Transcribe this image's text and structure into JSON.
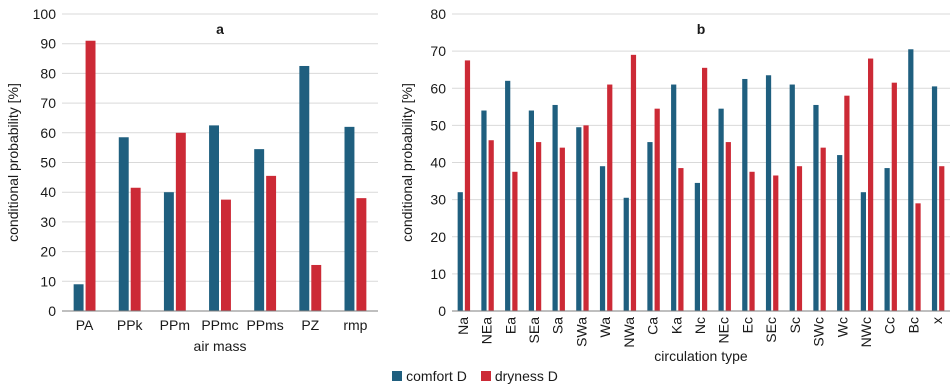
{
  "colors": {
    "comfort": "#1f5f7f",
    "dryness": "#cc2a36",
    "grid": "#d9d9d9",
    "axis": "#7f7f7f"
  },
  "legend": {
    "comfort_label": "comfort D",
    "dryness_label": "dryness D"
  },
  "chart_data": [
    {
      "type": "bar",
      "title": "a",
      "xlabel": "air mass",
      "ylabel": "conditional probability [%]",
      "ylim": [
        0,
        100
      ],
      "yticks": [
        0,
        10,
        20,
        30,
        40,
        50,
        60,
        70,
        80,
        90,
        100
      ],
      "grid": true,
      "categories": [
        "PA",
        "PPk",
        "PPm",
        "PPmc",
        "PPms",
        "PZ",
        "rmp"
      ],
      "series": [
        {
          "name": "comfort D",
          "values": [
            9,
            58.5,
            40,
            62.5,
            54.5,
            82.5,
            62
          ]
        },
        {
          "name": "dryness D",
          "values": [
            91,
            41.5,
            60,
            37.5,
            45.5,
            15.5,
            38
          ]
        }
      ]
    },
    {
      "type": "bar",
      "title": "b",
      "xlabel": "circulation type",
      "ylabel": "conditional probability [%]",
      "ylim": [
        0,
        80
      ],
      "yticks": [
        0,
        10,
        20,
        30,
        40,
        50,
        60,
        70,
        80
      ],
      "grid": true,
      "categories": [
        "Na",
        "NEa",
        "Ea",
        "SEa",
        "Sa",
        "SWa",
        "Wa",
        "NWa",
        "Ca",
        "Ka",
        "Nc",
        "NEc",
        "Ec",
        "SEc",
        "Sc",
        "SWc",
        "Wc",
        "NWc",
        "Cc",
        "Bc",
        "x"
      ],
      "series": [
        {
          "name": "comfort D",
          "values": [
            32,
            54,
            62,
            54,
            55.5,
            49.5,
            39,
            30.5,
            45.5,
            61,
            34.5,
            54.5,
            62.5,
            63.5,
            61,
            55.5,
            42,
            32,
            38.5,
            70.5,
            60.5
          ]
        },
        {
          "name": "dryness D",
          "values": [
            67.5,
            46,
            37.5,
            45.5,
            44,
            50,
            61,
            69,
            54.5,
            38.5,
            65.5,
            45.5,
            37.5,
            36.5,
            39,
            44,
            58,
            68,
            61.5,
            29,
            39
          ]
        }
      ]
    }
  ]
}
